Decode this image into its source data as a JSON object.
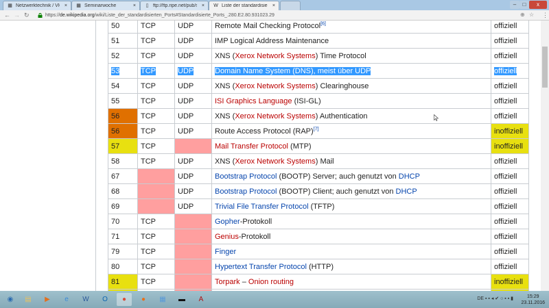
{
  "browser": {
    "tabs": [
      {
        "label": "Netzwerktechnik / VHS",
        "icon": "site-icon",
        "active": false
      },
      {
        "label": "Seminarwoche",
        "icon": "site-icon",
        "active": false
      },
      {
        "label": "ftp://ftp.ripe.net/pub/st",
        "icon": "page-icon",
        "active": false
      },
      {
        "label": "Liste der standardisierte",
        "icon": "wikipedia-icon",
        "active": true
      }
    ],
    "url_prefix": "https://",
    "url_domain": "de.wikipedia.org",
    "url_path": "/wiki/Liste_der_standardisierten_Ports#Standardisierte_Ports_.280.E2.80.931023.29"
  },
  "colors": {
    "selection": "#3399ff",
    "orange": "#e07000",
    "yellow": "#e8e010",
    "pink": "#ff9f9f",
    "redlink": "#ba0000",
    "link": "#0645ad"
  },
  "table": {
    "rows": [
      {
        "port": "50",
        "tcp": "TCP",
        "udp": "UDP",
        "desc": [
          {
            "t": "Remote Mail Checking Protocol"
          },
          {
            "t": "[6]",
            "k": "sup"
          }
        ],
        "status": "offiziell"
      },
      {
        "port": "51",
        "tcp": "TCP",
        "udp": "UDP",
        "desc": [
          {
            "t": "IMP Logical Address Maintenance"
          }
        ],
        "status": "offiziell"
      },
      {
        "port": "52",
        "tcp": "TCP",
        "udp": "UDP",
        "desc": [
          {
            "t": "XNS ("
          },
          {
            "t": "Xerox Network Systems",
            "k": "red"
          },
          {
            "t": ") Time Protocol"
          }
        ],
        "status": "offiziell"
      },
      {
        "port": "53",
        "tcp": "TCP",
        "udp": "UDP",
        "desc": [
          {
            "t": "Domain Name System (DNS), meist über UDP"
          }
        ],
        "status": "offiziell",
        "selected": true
      },
      {
        "port": "54",
        "tcp": "TCP",
        "udp": "UDP",
        "desc": [
          {
            "t": "XNS ("
          },
          {
            "t": "Xerox Network Systems",
            "k": "red"
          },
          {
            "t": ") Clearinghouse"
          }
        ],
        "status": "offiziell"
      },
      {
        "port": "55",
        "tcp": "TCP",
        "udp": "UDP",
        "desc": [
          {
            "t": "ISI Graphics Language",
            "k": "red"
          },
          {
            "t": " (ISI-GL)"
          }
        ],
        "status": "offiziell"
      },
      {
        "port": "56",
        "tcp": "TCP",
        "udp": "UDP",
        "desc": [
          {
            "t": "XNS ("
          },
          {
            "t": "Xerox Network Systems",
            "k": "red"
          },
          {
            "t": ") Authentication"
          }
        ],
        "status": "offiziell",
        "portColor": "orange"
      },
      {
        "port": "56",
        "tcp": "TCP",
        "udp": "UDP",
        "desc": [
          {
            "t": "Route Access Protocol (RAP)"
          },
          {
            "t": "[7]",
            "k": "sup"
          }
        ],
        "status": "inoffiziell",
        "portColor": "orange",
        "statusColor": "yellow"
      },
      {
        "port": "57",
        "tcp": "TCP",
        "udp": "",
        "desc": [
          {
            "t": "Mail Transfer Protocol",
            "k": "red"
          },
          {
            "t": " (MTP)"
          }
        ],
        "status": "inoffiziell",
        "portColor": "yellow",
        "udpColor": "pink",
        "statusColor": "yellow"
      },
      {
        "port": "58",
        "tcp": "TCP",
        "udp": "UDP",
        "desc": [
          {
            "t": "XNS ("
          },
          {
            "t": "Xerox Network Systems",
            "k": "red"
          },
          {
            "t": ") Mail"
          }
        ],
        "status": "offiziell"
      },
      {
        "port": "67",
        "tcp": "",
        "udp": "UDP",
        "desc": [
          {
            "t": "Bootstrap Protocol",
            "k": "blue"
          },
          {
            "t": " (BOOTP) Server; auch genutzt von "
          },
          {
            "t": "DHCP",
            "k": "blue"
          }
        ],
        "status": "offiziell",
        "tcpColor": "pink"
      },
      {
        "port": "68",
        "tcp": "",
        "udp": "UDP",
        "desc": [
          {
            "t": "Bootstrap Protocol",
            "k": "blue"
          },
          {
            "t": " (BOOTP) Client; auch genutzt von "
          },
          {
            "t": "DHCP",
            "k": "blue"
          }
        ],
        "status": "offiziell",
        "tcpColor": "pink"
      },
      {
        "port": "69",
        "tcp": "",
        "udp": "UDP",
        "desc": [
          {
            "t": "Trivial File Transfer Protocol",
            "k": "blue"
          },
          {
            "t": " (TFTP)"
          }
        ],
        "status": "offiziell",
        "tcpColor": "pink"
      },
      {
        "port": "70",
        "tcp": "TCP",
        "udp": "",
        "desc": [
          {
            "t": "Gopher",
            "k": "blue"
          },
          {
            "t": "-Protokoll"
          }
        ],
        "status": "offiziell",
        "udpColor": "pink"
      },
      {
        "port": "71",
        "tcp": "TCP",
        "udp": "",
        "desc": [
          {
            "t": "Genius",
            "k": "red"
          },
          {
            "t": "-Protokoll"
          }
        ],
        "status": "offiziell",
        "udpColor": "pink"
      },
      {
        "port": "79",
        "tcp": "TCP",
        "udp": "",
        "desc": [
          {
            "t": "Finger",
            "k": "blue"
          }
        ],
        "status": "offiziell",
        "udpColor": "pink"
      },
      {
        "port": "80",
        "tcp": "TCP",
        "udp": "",
        "desc": [
          {
            "t": "Hypertext Transfer Protocol",
            "k": "blue"
          },
          {
            "t": " (HTTP)"
          }
        ],
        "status": "offiziell",
        "udpColor": "pink"
      },
      {
        "port": "81",
        "tcp": "TCP",
        "udp": "",
        "desc": [
          {
            "t": "Torpark",
            "k": "red"
          },
          {
            "t": " – "
          },
          {
            "t": "Onion routing",
            "k": "red"
          }
        ],
        "status": "inoffiziell",
        "portColor": "yellow",
        "udpColor": "pink",
        "statusColor": "yellow"
      },
      {
        "port": "",
        "tcp": "",
        "udp": "",
        "desc": [],
        "status": "",
        "portColor": "yellow",
        "udpColor": "pink",
        "statusColor": "yellow"
      }
    ]
  },
  "taskbar": {
    "apps": [
      "start",
      "explorer",
      "media-player",
      "internet-explorer",
      "word",
      "outlook",
      "chrome",
      "firefox",
      "network",
      "terminal",
      "acrobat"
    ],
    "language": "DE",
    "time": "15:29",
    "date": "23.11.2016"
  }
}
